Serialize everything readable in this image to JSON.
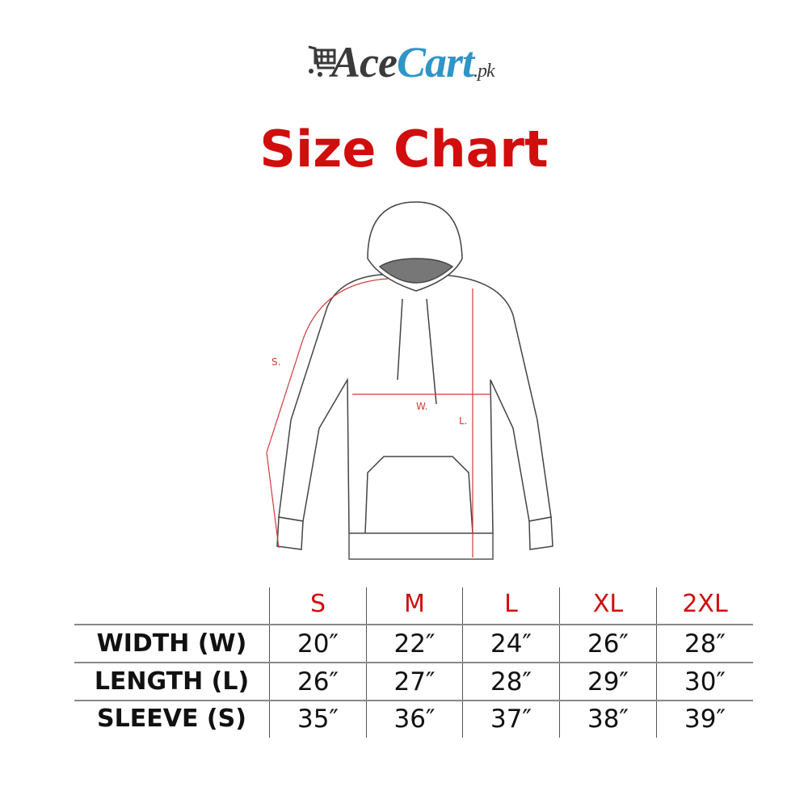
{
  "logo": {
    "text_dark": "Ace",
    "text_blue": "Cart",
    "suffix": ".pk",
    "icon": "shopping-cart-icon",
    "colors": {
      "dark": "#3a3a3a",
      "blue": "#2f95c6"
    }
  },
  "title": "Size Chart",
  "title_color": "#d10d0d",
  "diagram": {
    "labels": {
      "sleeve": "S.",
      "width": "W.",
      "length": "L."
    },
    "measure_color": "#d13a3a"
  },
  "table": {
    "sizes": [
      "S",
      "M",
      "L",
      "XL",
      "2XL"
    ],
    "rows": [
      {
        "label": "WIDTH (W)",
        "values": [
          "20″",
          "22″",
          "24″",
          "26″",
          "28″"
        ]
      },
      {
        "label": "LENGTH (L)",
        "values": [
          "26″",
          "27″",
          "28″",
          "29″",
          "30″"
        ]
      },
      {
        "label": "SLEEVE (S)",
        "values": [
          "35″",
          "36″",
          "37″",
          "38″",
          "39″"
        ]
      }
    ]
  }
}
